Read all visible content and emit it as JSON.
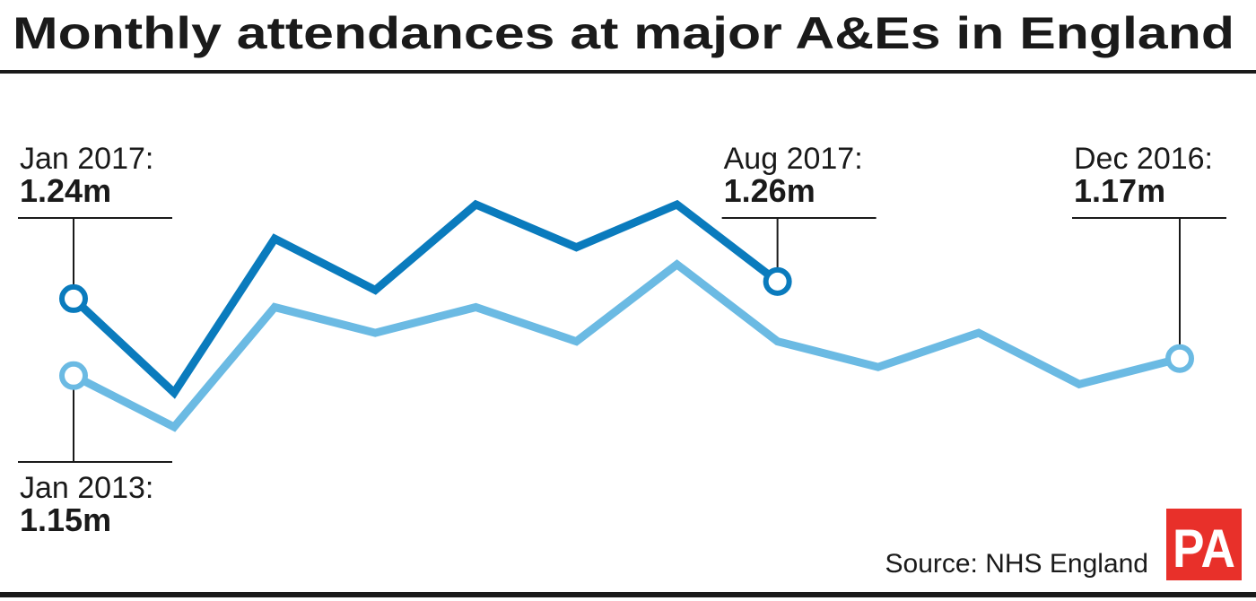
{
  "chart_data": {
    "type": "line",
    "title": "Monthly attendances at major A&Es in England",
    "series": [
      {
        "name": "2017",
        "color": "#0a7bbd",
        "values": [
          1.24,
          1.13,
          1.31,
          1.25,
          1.35,
          1.3,
          1.35,
          1.26
        ],
        "point_labels": [
          "Jan 2017:",
          null,
          null,
          null,
          null,
          null,
          null,
          "Aug 2017:"
        ],
        "value_labels": [
          "1.24m",
          null,
          null,
          null,
          null,
          null,
          null,
          "1.26m"
        ]
      },
      {
        "name": "2013",
        "color": "#6bbae3",
        "values": [
          1.15,
          1.09,
          1.23,
          1.2,
          1.23,
          1.19,
          1.28,
          1.19,
          1.16,
          1.2,
          1.14,
          1.17
        ],
        "point_labels": [
          "Jan 2013:",
          null,
          null,
          null,
          null,
          null,
          null,
          null,
          null,
          null,
          null,
          "Dec 2016:"
        ],
        "value_labels": [
          "1.15m",
          null,
          null,
          null,
          null,
          null,
          null,
          null,
          null,
          null,
          null,
          "1.17m"
        ]
      }
    ],
    "source": "Source: NHS England",
    "logo": "PA"
  }
}
